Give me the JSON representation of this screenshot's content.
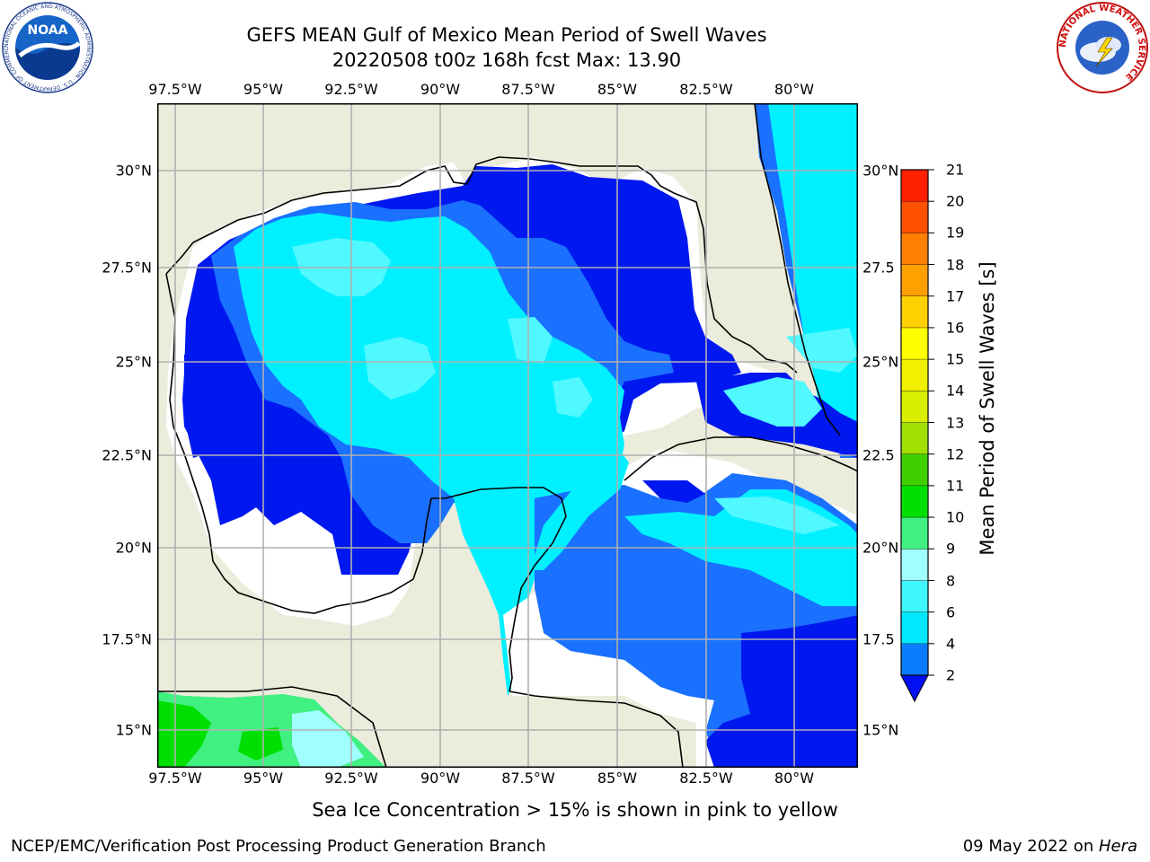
{
  "header": {
    "title_line1": "GEFS MEAN Gulf of Mexico Mean Period of Swell Waves",
    "title_line2": "20220508 t00z 168h fcst   Max: 13.90"
  },
  "logos": {
    "noaa_text": "NOAA",
    "noaa_ring": "NATIONAL OCEANIC AND ATMOSPHERIC ADMINISTRATION · U.S. DEPARTMENT OF COMMERCE",
    "nws_ring": "NATIONAL WEATHER SERVICE"
  },
  "map": {
    "lon_labels": [
      "97.5°W",
      "95°W",
      "92.5°W",
      "90°W",
      "87.5°W",
      "85°W",
      "82.5°W",
      "80°W"
    ],
    "lat_labels_left": [
      "30°N",
      "27.5°N",
      "25°N",
      "22.5°N",
      "20°N",
      "17.5°N",
      "15°N"
    ],
    "lat_labels_right": [
      "30°N",
      "27.5",
      "25°N",
      "22.5",
      "20°N",
      "17.5",
      "15°N"
    ],
    "colors": {
      "land": "#ececdc",
      "gridline": "#b0b0b0",
      "coast": "#000000",
      "missing": "#ffffff"
    }
  },
  "colorbar": {
    "label": "Mean Period of Swell Waves [s]",
    "ticks": [
      "2",
      "4",
      "6",
      "8",
      "9",
      "10",
      "11",
      "12",
      "13",
      "14",
      "15",
      "16",
      "17",
      "18",
      "19",
      "20",
      "21"
    ],
    "colors": [
      "#0a7cff",
      "#00e8ff",
      "#40f7ff",
      "#a0ffff",
      "#40f080",
      "#00e000",
      "#40d000",
      "#a0e000",
      "#d8f000",
      "#f0f000",
      "#ffff00",
      "#ffd000",
      "#ffa000",
      "#ff8000",
      "#ff5000",
      "#ff2000"
    ],
    "under_color": "#0010f0"
  },
  "footer": {
    "ice_note": "Sea Ice Concentration > 15% is shown in pink to yellow",
    "credit": "NCEP/EMC/Verification Post Processing Product Generation Branch",
    "date": "09 May 2022 on ",
    "machine": "Hera"
  }
}
